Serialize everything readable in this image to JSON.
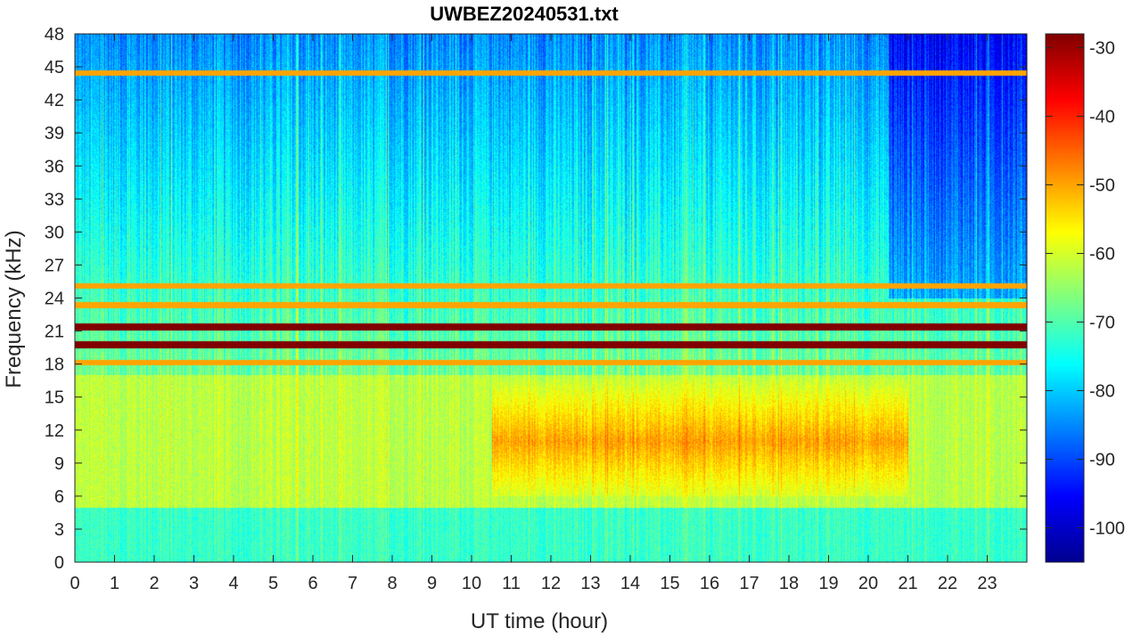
{
  "chart_data": {
    "type": "heatmap",
    "title": "UWBEZ20240531.txt",
    "xlabel": "UT time (hour)",
    "ylabel": "Frequency (kHz)",
    "xlim": [
      0,
      24
    ],
    "ylim": [
      0,
      48
    ],
    "x_ticks": [
      "0",
      "1",
      "2",
      "3",
      "4",
      "5",
      "6",
      "7",
      "8",
      "9",
      "10",
      "11",
      "12",
      "13",
      "14",
      "15",
      "16",
      "17",
      "18",
      "19",
      "20",
      "21",
      "22",
      "23"
    ],
    "y_ticks": [
      "0",
      "3",
      "6",
      "9",
      "12",
      "15",
      "18",
      "21",
      "24",
      "27",
      "30",
      "33",
      "36",
      "39",
      "42",
      "45",
      "48"
    ],
    "colorbar": {
      "range": [
        -105,
        -28
      ],
      "ticks": [
        "-30",
        "-40",
        "-50",
        "-60",
        "-70",
        "-80",
        "-90",
        "-100"
      ],
      "colormap": "jet"
    },
    "features": {
      "strong_lines_khz": [
        19.8,
        21.4
      ],
      "medium_lines_khz": [
        18.2,
        25.1,
        23.4,
        44.5
      ],
      "enhanced_band_khz": [
        6,
        17
      ],
      "enhanced_band_hours": [
        10.5,
        21
      ],
      "background_low_db": -85,
      "background_high_db": -60
    }
  }
}
